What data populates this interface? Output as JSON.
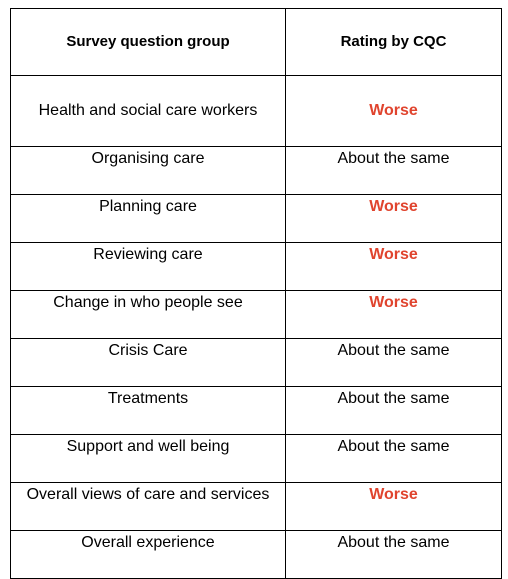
{
  "table": {
    "headers": [
      "Survey question group",
      "Rating by CQC"
    ],
    "rows": [
      {
        "group": "Health and social care workers",
        "rating": "Worse",
        "rating_color": "#e0442e"
      },
      {
        "group": "Organising care",
        "rating": "About the same",
        "rating_color": "#000000"
      },
      {
        "group": "Planning care",
        "rating": "Worse",
        "rating_color": "#e0442e"
      },
      {
        "group": "Reviewing care",
        "rating": "Worse",
        "rating_color": "#e0442e"
      },
      {
        "group": "Change in who people see",
        "rating": "Worse",
        "rating_color": "#e0442e"
      },
      {
        "group": "Crisis Care",
        "rating": "About the same",
        "rating_color": "#000000"
      },
      {
        "group": "Treatments",
        "rating": "About the same",
        "rating_color": "#000000"
      },
      {
        "group": "Support and well being",
        "rating": "About the same",
        "rating_color": "#000000"
      },
      {
        "group": "Overall views of care and services",
        "rating": "Worse",
        "rating_color": "#e0442e"
      },
      {
        "group": "Overall experience",
        "rating": "About the same",
        "rating_color": "#000000"
      }
    ]
  }
}
